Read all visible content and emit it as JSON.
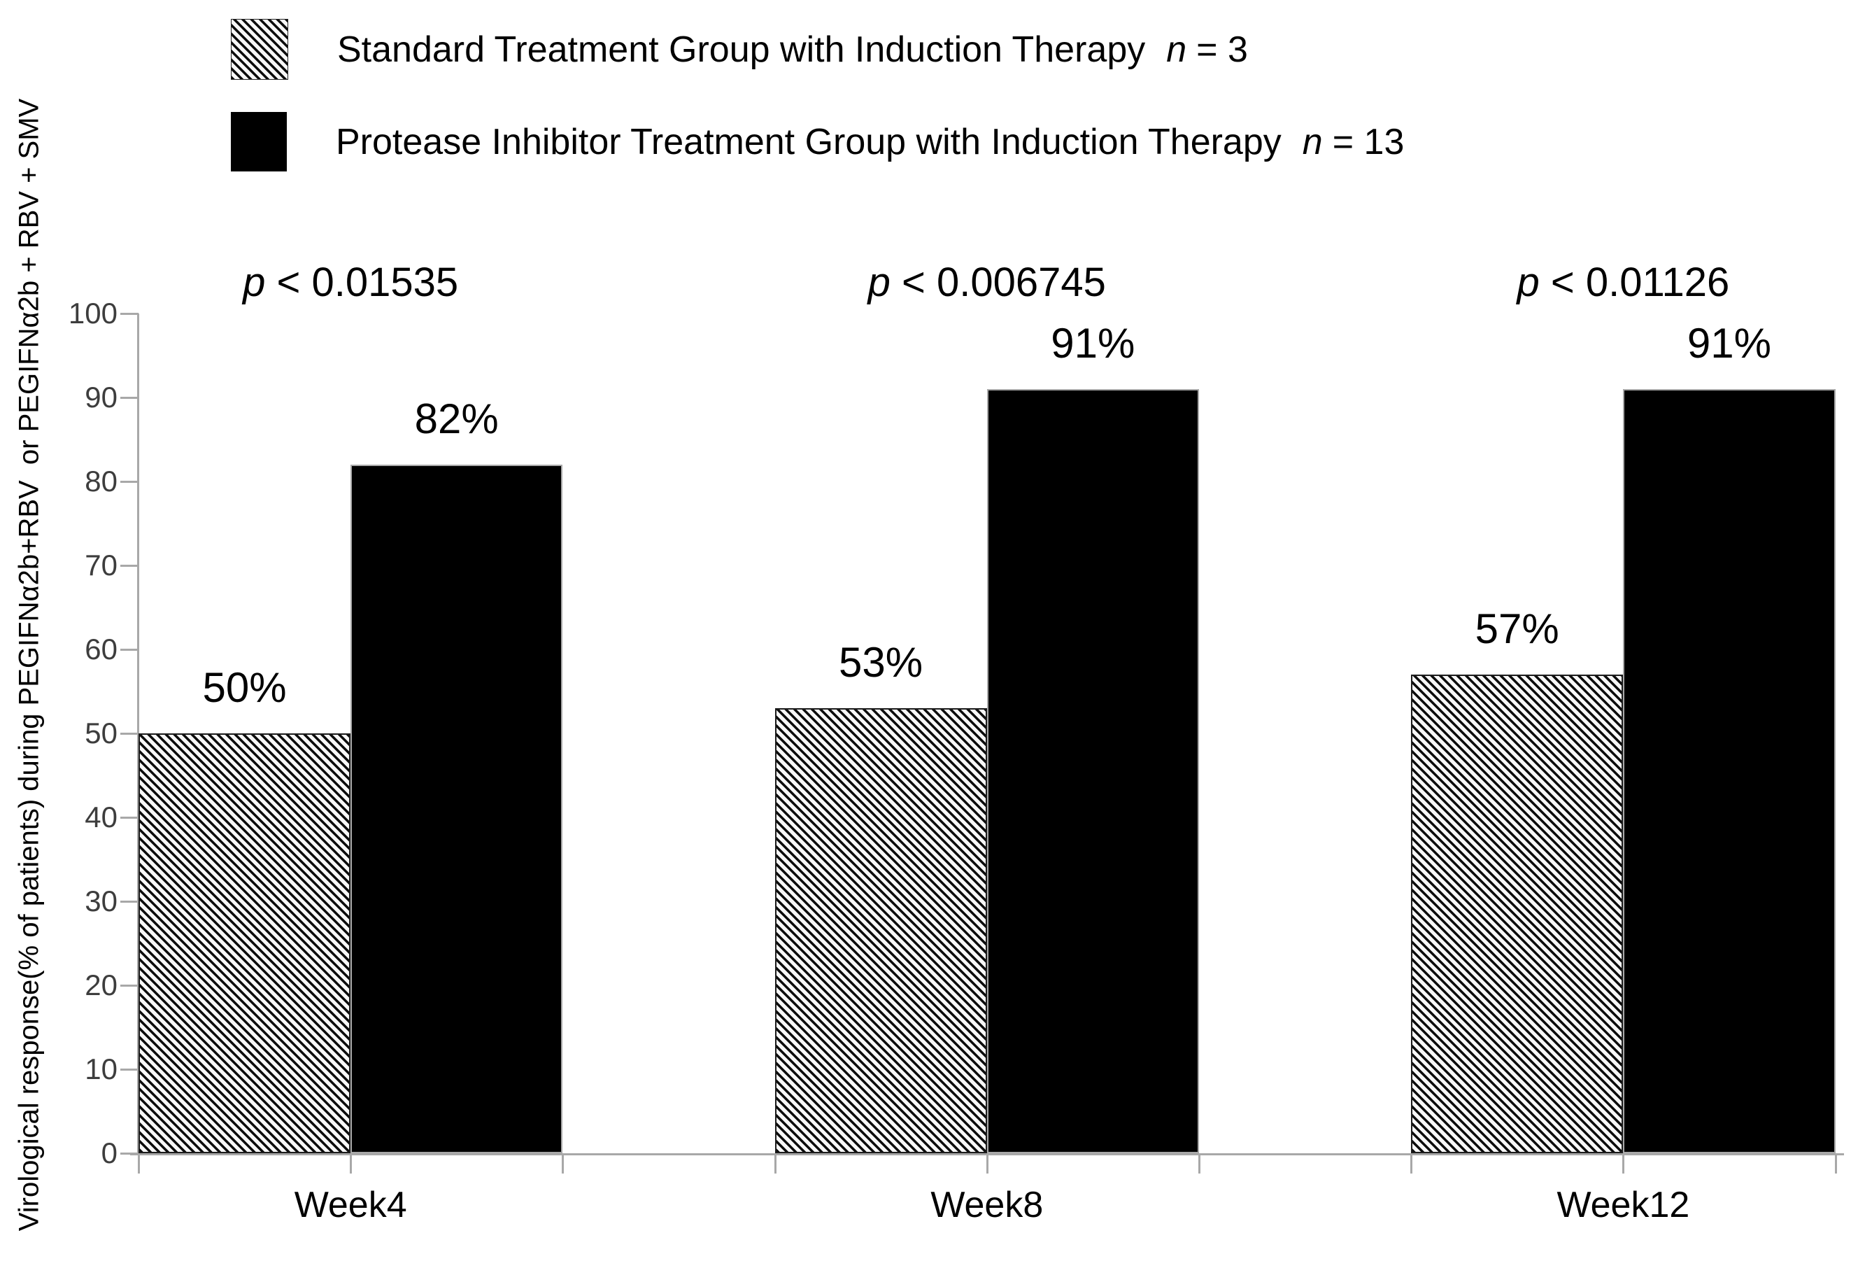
{
  "legend": {
    "items": [
      {
        "swatch": "hatched",
        "label": "Standard Treatment Group with Induction Therapy",
        "n_italic": "n",
        "n_rest": "= 3"
      },
      {
        "swatch": "black",
        "label": "Protease Inhibitor Treatment Group with Induction Therapy",
        "n_italic": "n",
        "n_rest": "= 13"
      }
    ]
  },
  "y_axis_label": "Virological response(% of patients) during PEGIFNα2b+RBV  or PEGIFNα2b + RBV + SMV",
  "chart_data": {
    "type": "bar",
    "categories": [
      "Week4",
      "Week8",
      "Week12"
    ],
    "series": [
      {
        "name": "Standard Treatment Group with Induction Therapy (n = 3)",
        "style": "hatched",
        "values": [
          50,
          53,
          57
        ],
        "value_labels": [
          "50%",
          "53%",
          "57%"
        ]
      },
      {
        "name": "Protease Inhibitor Treatment Group with Induction Therapy (n = 13)",
        "style": "solid-black",
        "values": [
          82,
          91,
          91
        ],
        "value_labels": [
          "82%",
          "91%",
          "91%"
        ]
      }
    ],
    "p_values": [
      {
        "italic_prefix": "p",
        "rest": " < 0.01535"
      },
      {
        "italic_prefix": "p",
        "rest": " < 0.006745"
      },
      {
        "italic_prefix": "p",
        "rest": " < 0.01126"
      }
    ],
    "ylabel": "Virological response(% of patients) during PEGIFNα2b+RBV  or PEGIFNα2b + RBV + SMV",
    "xlabel": "",
    "ylim": [
      0,
      100
    ],
    "yticks": [
      0,
      10,
      20,
      30,
      40,
      50,
      60,
      70,
      80,
      90,
      100
    ],
    "grid": false,
    "legend_position": "top-left"
  }
}
